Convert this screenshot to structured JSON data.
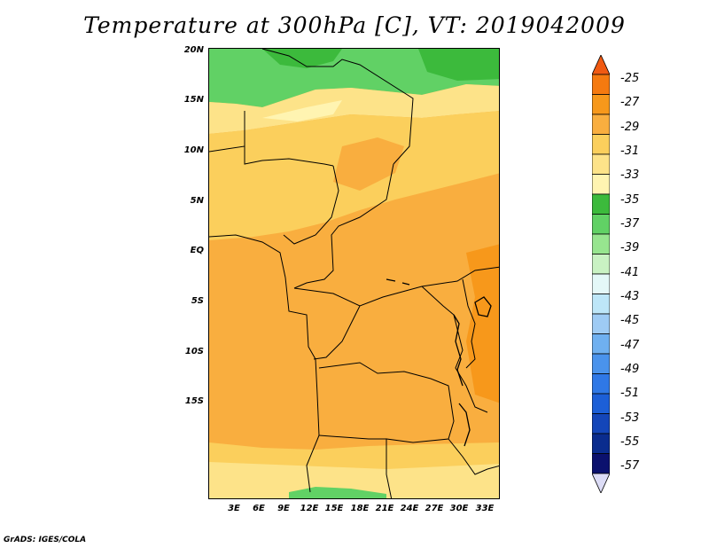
{
  "title": "Temperature at 300hPa [C], VT: 2019042009",
  "credit": "GrADS: IGES/COLA",
  "map": {
    "lat_labels": [
      "20N",
      "15N",
      "10N",
      "5N",
      "EQ",
      "5S",
      "10S",
      "15S"
    ],
    "lon_labels": [
      "3E",
      "6E",
      "9E",
      "12E",
      "15E",
      "18E",
      "21E",
      "24E",
      "27E",
      "30E",
      "33E"
    ]
  },
  "colorbar": {
    "labels": [
      "-25",
      "-27",
      "-29",
      "-31",
      "-33",
      "-35",
      "-37",
      "-39",
      "-41",
      "-43",
      "-45",
      "-47",
      "-49",
      "-51",
      "-53",
      "-55",
      "-57"
    ],
    "colors": [
      "#f05a12",
      "#f57a10",
      "#f7981b",
      "#f9ae3f",
      "#fbcf5c",
      "#fde389",
      "#fff4b1",
      "#3cba3c",
      "#61d165",
      "#97e58f",
      "#c9f2c3",
      "#e4f8f8",
      "#bde6f8",
      "#9ecbf4",
      "#6fb0f0",
      "#4a93ec",
      "#2f78e6",
      "#1c5fd7",
      "#1446b9",
      "#0a2c8e",
      "#0b116e",
      "#dcdcf6"
    ]
  },
  "field_colors": {
    "base": "#f9ae3f",
    "warm": "#f7981b",
    "light": "#fbcf5c",
    "pale": "#fde389",
    "green": "#61d165",
    "green_dark": "#3cba3c"
  }
}
